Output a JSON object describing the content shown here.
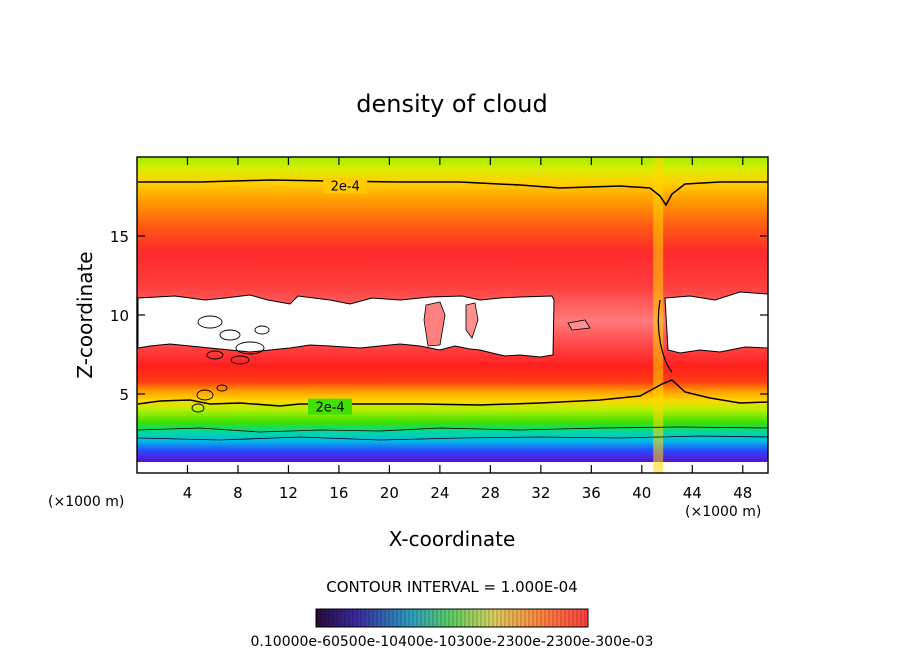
{
  "chart_data": {
    "type": "heatmap",
    "title": "density of cloud",
    "xlabel": "X-coordinate",
    "ylabel": "Z-coordinate",
    "x_unit": "(×1000 m)",
    "z_unit": "(×1000 m)",
    "xlim": [
      0,
      50
    ],
    "ylim": [
      0,
      20
    ],
    "x_ticks": [
      4,
      8,
      12,
      16,
      20,
      24,
      28,
      32,
      36,
      40,
      44,
      48
    ],
    "y_ticks": [
      5,
      10,
      15
    ],
    "contour_interval_label": "CONTOUR INTERVAL = 1.000E-04",
    "contour_labels": [
      {
        "text": "2e-4",
        "x": 16.5,
        "z": 18.2
      },
      {
        "text": "2e-4",
        "x": 15.3,
        "z": 4.2
      }
    ],
    "colorbar_labels": "0.10000e-60500e-10400e-10300e-2300e-2300e-300e-03",
    "colors": {
      "low": "#6a0dad",
      "mid": "#00e070",
      "high": "#ff2a2a",
      "background": "#ffffff"
    }
  }
}
